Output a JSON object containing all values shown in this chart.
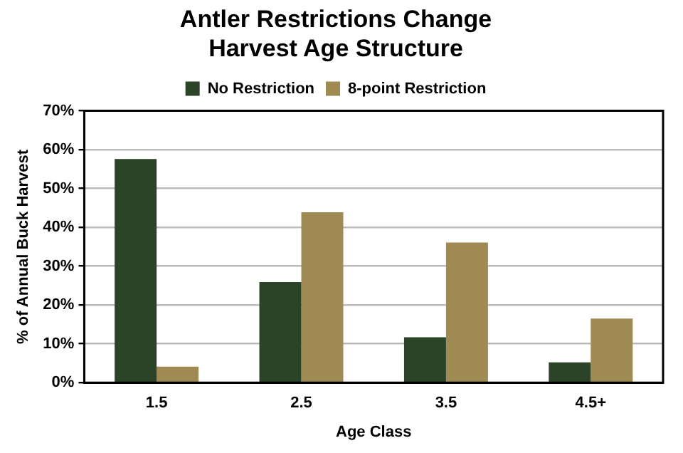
{
  "chart_data": {
    "type": "bar",
    "title": [
      "Antler Restrictions Change",
      "Harvest Age Structure"
    ],
    "xlabel": "Age Class",
    "ylabel": "% of Annual Buck Harvest",
    "categories": [
      "1.5",
      "2.5",
      "3.5",
      "4.5+"
    ],
    "series": [
      {
        "name": "No Restriction",
        "color": "#2b4327",
        "values": [
          57.6,
          25.9,
          11.7,
          5.2
        ]
      },
      {
        "name": "8-point Restriction",
        "color": "#a08a54",
        "values": [
          4.1,
          43.9,
          36.1,
          16.5
        ]
      }
    ],
    "ylim": [
      0,
      70
    ],
    "yticks": [
      {
        "value": 0,
        "label": "0%"
      },
      {
        "value": 10,
        "label": "10%"
      },
      {
        "value": 20,
        "label": "20%"
      },
      {
        "value": 30,
        "label": "30%"
      },
      {
        "value": 40,
        "label": "40%"
      },
      {
        "value": 50,
        "label": "50%"
      },
      {
        "value": 60,
        "label": "60%"
      },
      {
        "value": 70,
        "label": "70%"
      }
    ],
    "grid": "y",
    "legend": "top"
  }
}
